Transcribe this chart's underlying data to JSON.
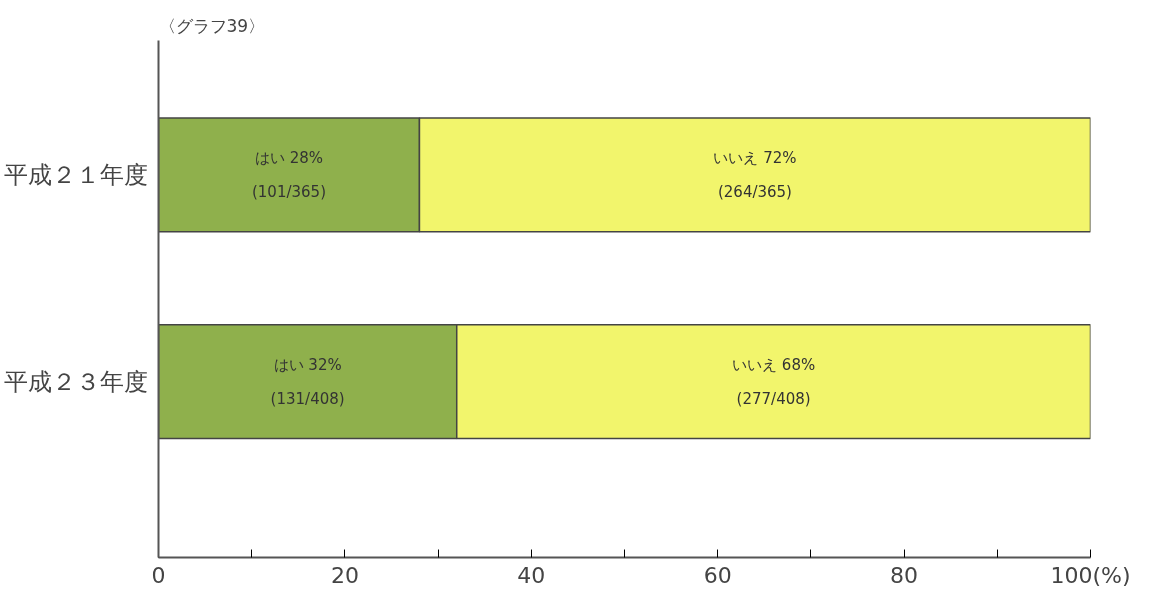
{
  "chart_data": {
    "type": "bar",
    "orientation": "horizontal",
    "stacked": true,
    "title": "〈グラフ39〉",
    "categories": [
      "平成２１年度",
      "平成２３年度"
    ],
    "series": [
      {
        "color": "#8fb04c",
        "values": [
          28,
          32
        ],
        "value_labels": [
          "はい 28%\n(101/365)",
          "はい 32%\n(131/408)"
        ]
      },
      {
        "color": "#f2f56c",
        "values": [
          72,
          68
        ],
        "value_labels": [
          "いいえ 72%\n(264/365)",
          "いいえ 68%\n(277/408)"
        ]
      }
    ],
    "xlim": [
      0,
      100
    ],
    "xticks": [
      0,
      {
        "value": 10,
        "label": null
      },
      20,
      {
        "value": 30,
        "label": null
      },
      40,
      {
        "value": 50,
        "label": null
      },
      60,
      {
        "value": 70,
        "label": null
      },
      80,
      {
        "value": 90,
        "label": null
      },
      {
        "value": 100,
        "label": "100(%)"
      }
    ],
    "grid": false
  }
}
